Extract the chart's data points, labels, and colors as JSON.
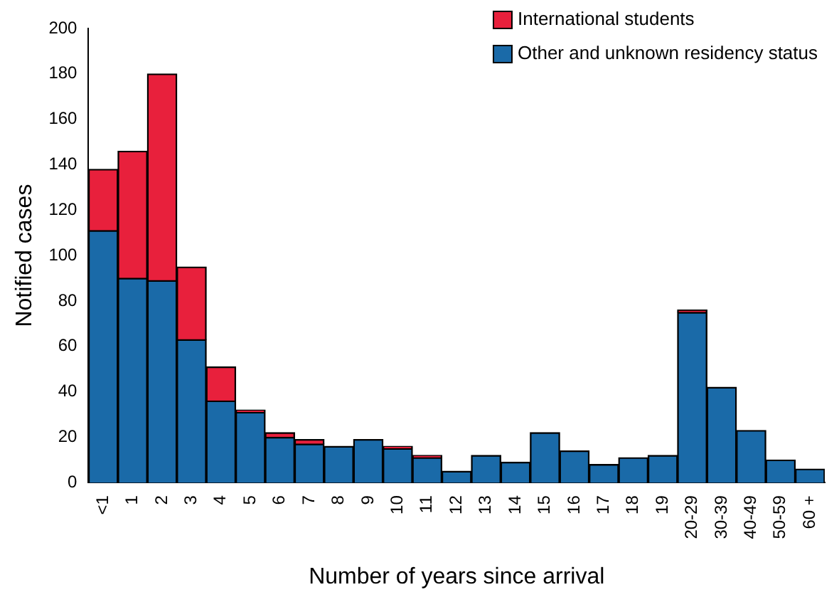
{
  "chart_data": {
    "type": "bar",
    "stacked": true,
    "xlabel": "Number of years since arrival",
    "ylabel": "Notified cases",
    "categories": [
      "<1",
      "1",
      "2",
      "3",
      "4",
      "5",
      "6",
      "7",
      "8",
      "9",
      "10",
      "11",
      "12",
      "13",
      "14",
      "15",
      "16",
      "17",
      "18",
      "19",
      "20-29",
      "30-39",
      "40-49",
      "50-59",
      "60 +"
    ],
    "series": [
      {
        "name": "Other and unknown residency status",
        "color": "#1a6aa8",
        "values": [
          111,
          90,
          89,
          63,
          36,
          31,
          20,
          17,
          16,
          19,
          15,
          11,
          5,
          12,
          9,
          22,
          14,
          8,
          11,
          12,
          75,
          42,
          23,
          10,
          6
        ]
      },
      {
        "name": "International students",
        "color": "#e8203c",
        "values": [
          27,
          56,
          91,
          32,
          15,
          1,
          2,
          2,
          0,
          0,
          1,
          1,
          0,
          0,
          0,
          0,
          0,
          0,
          0,
          0,
          1,
          0,
          0,
          0,
          0
        ]
      }
    ],
    "ylim": [
      0,
      200
    ],
    "yticks": [
      0,
      20,
      40,
      60,
      80,
      100,
      120,
      140,
      160,
      180,
      200
    ],
    "grid": false,
    "legend": "top right"
  }
}
